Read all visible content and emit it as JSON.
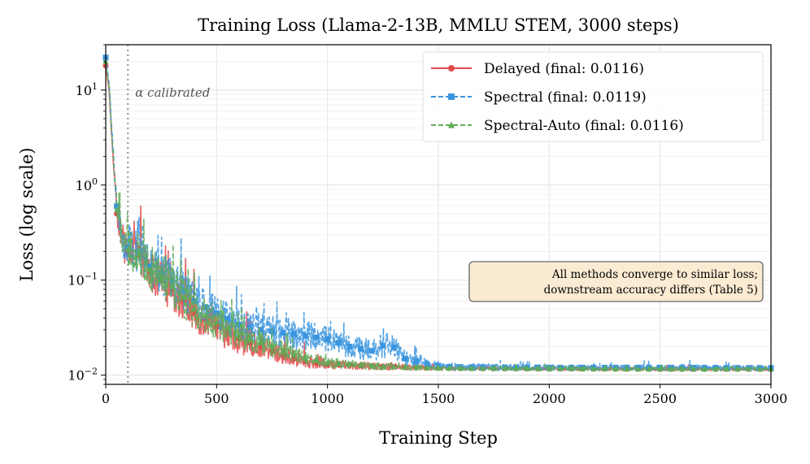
{
  "chart_data": {
    "type": "line",
    "title": "Training Loss (Llama-2-13B, MMLU STEM, 3000 steps)",
    "xlabel": "Training Step",
    "ylabel": "Loss (log scale)",
    "xlim": [
      0,
      3000
    ],
    "ylim": [
      0.008,
      30
    ],
    "yscale": "log",
    "x_ticks": [
      0,
      500,
      1000,
      1500,
      2000,
      2500,
      3000
    ],
    "x_tick_labels": [
      "0",
      "500",
      "1000",
      "1500",
      "2000",
      "2500",
      "3000"
    ],
    "y_ticks": [
      0.01,
      0.1,
      1,
      10
    ],
    "y_tick_labels": [
      {
        "base": "10",
        "exp": "−2"
      },
      {
        "base": "10",
        "exp": "−1"
      },
      {
        "base": "10",
        "exp": "0"
      },
      {
        "base": "10",
        "exp": "1"
      }
    ],
    "grid": true,
    "legend_position": "top-right",
    "vline": {
      "x": 100,
      "label": "α calibrated",
      "color": "#999999"
    },
    "annotation": {
      "lines": [
        "All methods converge to similar loss;",
        "downstream accuracy differs (Table 5)"
      ],
      "position": "right-middle",
      "bg": "#fbebd3",
      "border": "#7f7f7f"
    },
    "series": [
      {
        "name": "Delayed (final: 0.0116)",
        "color": "#e34a4a",
        "marker": "circle",
        "dash": "solid",
        "final": 0.0116,
        "x": [
          0,
          15,
          30,
          50,
          75,
          100,
          150,
          200,
          300,
          400,
          500,
          600,
          700,
          800,
          900,
          1000,
          1200,
          1400,
          1600,
          2000,
          2500,
          3000
        ],
        "y": [
          18,
          10,
          2.5,
          0.5,
          0.25,
          0.2,
          0.18,
          0.12,
          0.08,
          0.045,
          0.032,
          0.024,
          0.02,
          0.016,
          0.014,
          0.013,
          0.0125,
          0.012,
          0.0118,
          0.0117,
          0.0116,
          0.0116
        ],
        "noise": [
          0,
          0,
          0.06,
          0.12,
          0.2,
          0.22,
          0.22,
          0.22,
          0.22,
          0.2,
          0.18,
          0.16,
          0.12,
          0.09,
          0.07,
          0.05,
          0.04,
          0.03,
          0.02,
          0.02,
          0.02,
          0.02
        ]
      },
      {
        "name": "Spectral (final: 0.0119)",
        "color": "#3a95e0",
        "marker": "square",
        "dash": "dashed",
        "final": 0.0119,
        "x": [
          0,
          15,
          30,
          50,
          75,
          100,
          150,
          200,
          300,
          400,
          500,
          600,
          700,
          800,
          900,
          1000,
          1100,
          1200,
          1280,
          1350,
          1450,
          1550,
          2000,
          2500,
          3000
        ],
        "y": [
          22,
          12,
          3,
          0.6,
          0.28,
          0.22,
          0.2,
          0.14,
          0.1,
          0.06,
          0.045,
          0.034,
          0.03,
          0.028,
          0.026,
          0.024,
          0.02,
          0.018,
          0.022,
          0.015,
          0.013,
          0.0122,
          0.012,
          0.012,
          0.0119
        ],
        "noise": [
          0,
          0,
          0.06,
          0.12,
          0.2,
          0.22,
          0.22,
          0.22,
          0.22,
          0.2,
          0.18,
          0.18,
          0.18,
          0.17,
          0.16,
          0.14,
          0.12,
          0.12,
          0.14,
          0.08,
          0.05,
          0.04,
          0.03,
          0.03,
          0.03
        ]
      },
      {
        "name": "Spectral-Auto (final: 0.0116)",
        "color": "#5fab58",
        "marker": "triangle",
        "dash": "dashed",
        "final": 0.0116,
        "x": [
          0,
          15,
          30,
          50,
          75,
          100,
          150,
          200,
          300,
          400,
          500,
          600,
          700,
          800,
          900,
          1000,
          1200,
          1400,
          1600,
          2000,
          2500,
          3000
        ],
        "y": [
          20,
          11,
          2.8,
          0.55,
          0.27,
          0.21,
          0.19,
          0.13,
          0.085,
          0.05,
          0.036,
          0.027,
          0.022,
          0.018,
          0.015,
          0.0135,
          0.0125,
          0.012,
          0.0118,
          0.0117,
          0.0116,
          0.0116
        ],
        "noise": [
          0,
          0,
          0.06,
          0.12,
          0.2,
          0.22,
          0.22,
          0.22,
          0.22,
          0.2,
          0.18,
          0.16,
          0.13,
          0.1,
          0.08,
          0.06,
          0.04,
          0.03,
          0.02,
          0.02,
          0.02,
          0.02
        ]
      }
    ]
  }
}
